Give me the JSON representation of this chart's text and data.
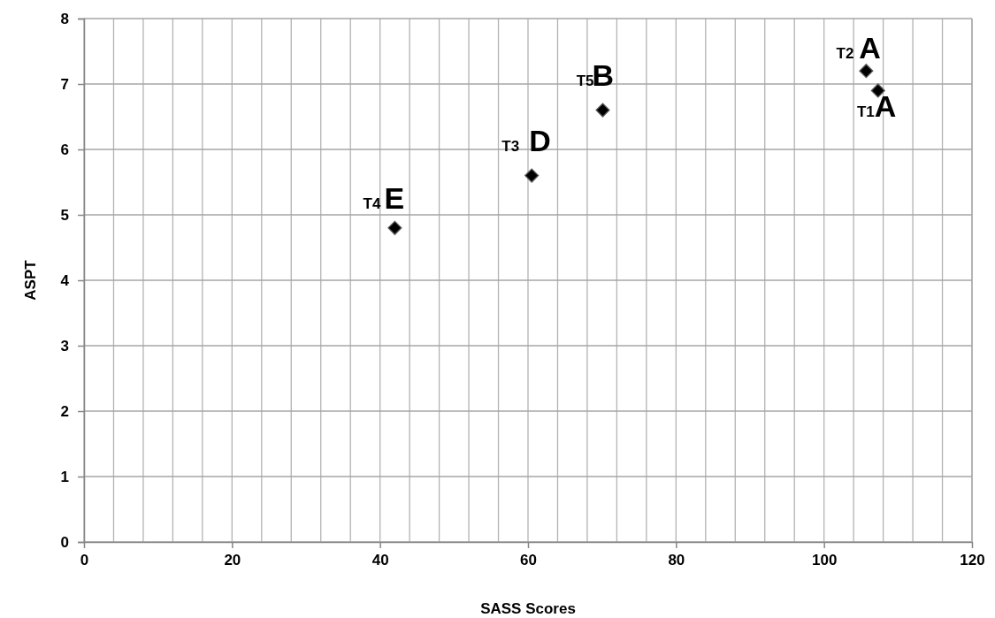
{
  "chart_data": {
    "type": "scatter",
    "xlabel": "SASS Scores",
    "ylabel": "ASPT",
    "x": [
      107.3,
      105.7,
      60.5,
      42,
      70.1
    ],
    "series": [
      {
        "color": "#000000",
        "values": [
          6.9,
          7.2,
          5.6,
          4.8,
          6.6
        ]
      }
    ],
    "marker": "diamond",
    "grid": true,
    "xlim": [
      0,
      120
    ],
    "xticks": [
      0,
      {
        "value": 4,
        "label": null
      },
      {
        "value": 8,
        "label": null
      },
      {
        "value": 12,
        "label": null
      },
      {
        "value": 16,
        "label": null
      },
      20,
      {
        "value": 24,
        "label": null
      },
      {
        "value": 28,
        "label": null
      },
      {
        "value": 32,
        "label": null
      },
      {
        "value": 36,
        "label": null
      },
      40,
      {
        "value": 44,
        "label": null
      },
      {
        "value": 48,
        "label": null
      },
      {
        "value": 52,
        "label": null
      },
      {
        "value": 56,
        "label": null
      },
      60,
      {
        "value": 64,
        "label": null
      },
      {
        "value": 68,
        "label": null
      },
      {
        "value": 72,
        "label": null
      },
      {
        "value": 76,
        "label": null
      },
      80,
      {
        "value": 84,
        "label": null
      },
      {
        "value": 88,
        "label": null
      },
      {
        "value": 92,
        "label": null
      },
      {
        "value": 96,
        "label": null
      },
      100,
      {
        "value": 104,
        "label": null
      },
      {
        "value": 108,
        "label": null
      },
      {
        "value": 112,
        "label": null
      },
      {
        "value": 116,
        "label": null
      },
      120
    ],
    "ylim": [
      0,
      8
    ],
    "yticks": [
      0,
      1,
      2,
      3,
      4,
      5,
      6,
      7,
      8
    ],
    "annotations": [
      {
        "text": "T1",
        "x": 107.3,
        "y": 6.9
      },
      {
        "text": "A",
        "x": 107.3,
        "y": 6.9
      },
      {
        "text": "T2",
        "x": 105.7,
        "y": 7.2
      },
      {
        "text": "A",
        "x": 105.7,
        "y": 7.2
      },
      {
        "text": "T3",
        "x": 60.5,
        "y": 5.6
      },
      {
        "text": "D",
        "x": 60.5,
        "y": 5.6
      },
      {
        "text": "T4",
        "x": 42,
        "y": 4.8
      },
      {
        "text": "E",
        "x": 42,
        "y": 4.8
      },
      {
        "text": "T5",
        "x": 70.1,
        "y": 6.6
      },
      {
        "text": "B",
        "x": 70.1,
        "y": 6.6
      }
    ]
  }
}
